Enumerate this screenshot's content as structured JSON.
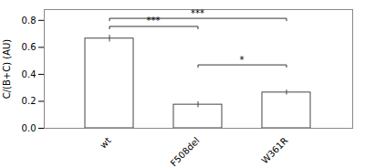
{
  "chart_data": {
    "type": "bar",
    "categories": [
      "wt",
      "F508del",
      "W361R"
    ],
    "values": [
      0.665,
      0.175,
      0.265
    ],
    "errors": [
      0.025,
      0.022,
      0.018
    ],
    "color": "#ffffff",
    "ylabel": "C/(B+C) (AU)",
    "ylim": [
      0.0,
      0.88
    ],
    "yticks": [
      {
        "value": 0,
        "label": "0.0"
      },
      0.2,
      0.4,
      0.6,
      0.8
    ],
    "grid": false,
    "annotations": [
      {
        "from": "wt",
        "to": "F508del",
        "y": 0.755,
        "label": "***"
      },
      {
        "from": "wt",
        "to": "W361R",
        "y": 0.815,
        "label": "***"
      },
      {
        "from": "F508del",
        "to": "W361R",
        "y": 0.47,
        "label": "*"
      }
    ]
  }
}
